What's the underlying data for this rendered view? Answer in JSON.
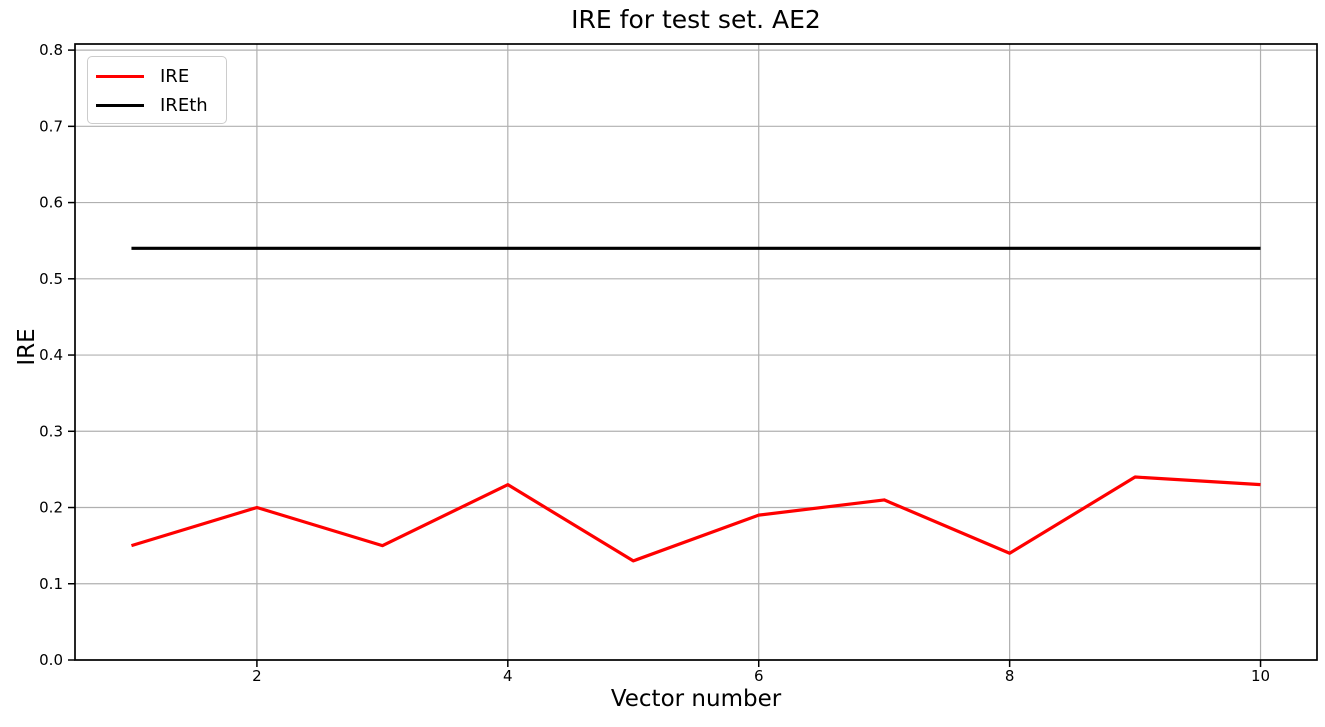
{
  "figure": {
    "title": "IRE for test set. AE2",
    "xlabel": "Vector number",
    "ylabel": "IRE"
  },
  "legend": {
    "position": "upper-left",
    "items": [
      {
        "label": "IRE",
        "color": "#ff0000"
      },
      {
        "label": "IREth",
        "color": "#000000"
      }
    ]
  },
  "chart_data": {
    "type": "line",
    "title": "IRE for test set. AE2",
    "xlabel": "Vector number",
    "ylabel": "IRE",
    "x": [
      1,
      2,
      3,
      4,
      5,
      6,
      7,
      8,
      9,
      10
    ],
    "series": [
      {
        "name": "IRE",
        "color": "#ff0000",
        "linewidth": 3.2,
        "values": [
          0.15,
          0.2,
          0.15,
          0.23,
          0.13,
          0.19,
          0.21,
          0.14,
          0.24,
          0.23
        ]
      },
      {
        "name": "IREth",
        "color": "#000000",
        "linewidth": 3.2,
        "values": [
          0.54,
          0.54,
          0.54,
          0.54,
          0.54,
          0.54,
          0.54,
          0.54,
          0.54,
          0.54
        ]
      }
    ],
    "xlim": [
      0.55,
      10.45
    ],
    "ylim": [
      0,
      0.808
    ],
    "xticks": [
      2,
      4,
      6,
      8,
      10
    ],
    "xtick_labels": [
      "2",
      "4",
      "6",
      "8",
      "10"
    ],
    "yticks": [
      0,
      0.1,
      0.2,
      0.3,
      0.4,
      0.5,
      0.6,
      0.7,
      0.8
    ],
    "ytick_labels": [
      "0.0",
      "0.1",
      "0.2",
      "0.3",
      "0.4",
      "0.5",
      "0.6",
      "0.7",
      "0.8"
    ],
    "grid": true,
    "grid_color": "#b0b0b0",
    "legend_position": "upper left"
  }
}
